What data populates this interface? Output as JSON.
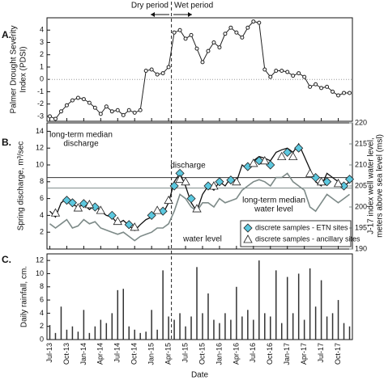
{
  "chart_data": [
    {
      "type": "line",
      "panel_label": "A.",
      "ylabel": [
        "Palmer Drought Severity",
        "Index (PDSI)"
      ],
      "annotations": [
        "Dry period",
        "Wet period"
      ],
      "color": "#222222",
      "reference_line": 0,
      "x": [
        "Jul-13",
        "Aug-13",
        "Sep-13",
        "Oct-13",
        "Nov-13",
        "Dec-13",
        "Jan-14",
        "Feb-14",
        "Mar-14",
        "Apr-14",
        "May-14",
        "Jun-14",
        "Jul-14",
        "Aug-14",
        "Sep-14",
        "Oct-14",
        "Nov-14",
        "Dec-14",
        "Jan-15",
        "Feb-15",
        "Mar-15",
        "Apr-15",
        "May-15",
        "Jun-15",
        "Jul-15",
        "Aug-15",
        "Sep-15",
        "Oct-15",
        "Nov-15",
        "Dec-15",
        "Jan-16",
        "Feb-16",
        "Mar-16",
        "Apr-16",
        "May-16",
        "Jun-16",
        "Jul-16",
        "Aug-16",
        "Sep-16",
        "Oct-16",
        "Nov-16",
        "Dec-16",
        "Jan-17",
        "Feb-17",
        "Mar-17",
        "Apr-17",
        "May-17",
        "Jun-17",
        "Jul-17",
        "Aug-17",
        "Sep-17",
        "Oct-17",
        "Nov-17",
        "Dec-17"
      ],
      "values": [
        -3.0,
        -3.2,
        -2.6,
        -2.1,
        -1.7,
        -1.5,
        -1.6,
        -1.9,
        -2.3,
        -2.8,
        -2.2,
        -2.6,
        -2.5,
        -2.9,
        -2.5,
        -2.7,
        -2.5,
        0.7,
        0.8,
        0.4,
        0.5,
        1.0,
        3.8,
        4.0,
        3.3,
        3.6,
        2.5,
        1.4,
        2.3,
        3.0,
        2.6,
        3.7,
        4.2,
        3.8,
        3.4,
        4.2,
        4.7,
        4.6,
        0.8,
        0.2,
        0.7,
        0.7,
        0.6,
        0.3,
        0.5,
        0.2,
        -0.6,
        -0.4,
        -0.7,
        -0.6,
        -1.0,
        -1.3,
        -1.1,
        -1.1
      ],
      "ylim": [
        -3.4,
        5
      ],
      "yticks": [
        -3,
        -2,
        -1,
        0,
        1,
        2,
        3,
        4
      ]
    },
    {
      "type": "line",
      "panel_label": "B.",
      "ylabel": "Spring discharge, m³/sec",
      "y2label": [
        "J-17 index well water level,",
        "meters above sea level (msl)"
      ],
      "x": [
        "Jul-13",
        "Aug-13",
        "Sep-13",
        "Oct-13",
        "Nov-13",
        "Dec-13",
        "Jan-14",
        "Feb-14",
        "Mar-14",
        "Apr-14",
        "May-14",
        "Jun-14",
        "Jul-14",
        "Aug-14",
        "Sep-14",
        "Oct-14",
        "Nov-14",
        "Dec-14",
        "Jan-15",
        "Feb-15",
        "Mar-15",
        "Apr-15",
        "May-15",
        "Jun-15",
        "Jul-15",
        "Aug-15",
        "Sep-15",
        "Oct-15",
        "Nov-15",
        "Dec-15",
        "Jan-16",
        "Feb-16",
        "Mar-16",
        "Apr-16",
        "May-16",
        "Jun-16",
        "Jul-16",
        "Aug-16",
        "Sep-16",
        "Oct-16",
        "Nov-16",
        "Dec-16",
        "Jan-17",
        "Feb-17",
        "Mar-17",
        "Apr-17",
        "May-17",
        "Jun-17",
        "Jul-17",
        "Aug-17",
        "Sep-17",
        "Oct-17",
        "Nov-17",
        "Dec-17"
      ],
      "series": [
        {
          "name": "discharge",
          "color": "#111111",
          "values": [
            4.5,
            3.8,
            5.5,
            6.0,
            5.3,
            5.0,
            5.3,
            4.7,
            5.2,
            4.5,
            4.0,
            3.8,
            3.0,
            3.4,
            2.8,
            2.2,
            2.9,
            3.5,
            3.8,
            4.5,
            4.2,
            5.5,
            8.0,
            9.0,
            7.5,
            5.5,
            4.5,
            6.5,
            7.5,
            7.0,
            8.0,
            7.5,
            8.5,
            8.0,
            10.0,
            9.5,
            10.5,
            11.0,
            10.8,
            10.5,
            11.5,
            11.8,
            12.0,
            11.5,
            12.5,
            11.0,
            9.5,
            8.0,
            7.5,
            9.0,
            8.5,
            8.0,
            7.5,
            8.0
          ]
        },
        {
          "name": "water level",
          "color": "#7d8a88",
          "axis": "y2",
          "values": [
            196,
            195,
            196,
            197,
            195,
            195.5,
            197,
            196,
            196.5,
            195,
            194.5,
            194,
            193.5,
            194,
            193,
            192,
            193,
            193.5,
            194,
            195,
            195,
            196,
            199,
            203,
            202,
            200,
            199,
            201,
            201,
            200,
            202,
            201,
            201.5,
            202,
            204,
            205,
            206,
            206.5,
            206,
            205,
            207,
            207,
            208,
            206,
            205,
            204,
            200,
            199,
            201,
            203,
            202,
            201,
            202,
            203
          ]
        },
        {
          "name": "discrete samples - ETN sites",
          "type": "scatter",
          "marker": "diamond",
          "color": "#5cc8df",
          "x": [
            "Oct-13",
            "Nov-13",
            "Jan-14",
            "Mar-14",
            "Jun-14",
            "Sep-14",
            "Jan-15",
            "Mar-15",
            "May-15",
            "Jun-15",
            "Aug-15",
            "Nov-15",
            "Jan-16",
            "Mar-16",
            "Jun-16",
            "Aug-16",
            "Oct-16",
            "Jan-17",
            "Mar-17",
            "Jun-17",
            "Aug-17",
            "Nov-17",
            "Dec-17"
          ],
          "values": [
            5.8,
            5.5,
            5.4,
            5.0,
            4.0,
            2.9,
            4.0,
            4.5,
            7.5,
            9.0,
            6.0,
            7.5,
            8.0,
            8.2,
            9.8,
            10.5,
            10.0,
            11.5,
            12.0,
            8.5,
            8.0,
            7.5,
            8.3
          ]
        },
        {
          "name": "discrete samples - ancillary sites",
          "type": "scatter",
          "marker": "triangle",
          "color": "#ffffff",
          "x": [
            "Aug-13",
            "Dec-13",
            "Feb-14",
            "Apr-14",
            "Jul-14",
            "Oct-14",
            "Feb-15",
            "Apr-15",
            "Jun-15",
            "Jul-15",
            "Sep-15",
            "Dec-15",
            "Apr-16",
            "Jul-16",
            "Sep-16",
            "Dec-16",
            "Feb-17",
            "May-17",
            "Jul-17",
            "Oct-17"
          ],
          "values": [
            4.3,
            4.9,
            5.3,
            4.6,
            3.3,
            2.6,
            4.6,
            5.8,
            8.3,
            8.0,
            4.8,
            7.5,
            8.0,
            10.2,
            10.5,
            11.0,
            11.0,
            9.0,
            8.0,
            7.8
          ]
        }
      ],
      "reference_lines": [
        {
          "value": 8.5,
          "label": [
            "long-term median",
            "discharge"
          ],
          "color": "#333333"
        },
        {
          "value": 204.5,
          "axis": "y2",
          "label": [
            "long-term median",
            "water level"
          ],
          "color": "#7d8a88"
        }
      ],
      "ylim": [
        0,
        15
      ],
      "yticks": [
        2,
        4,
        6,
        8,
        10,
        12,
        14
      ],
      "y2lim": [
        190,
        220
      ],
      "y2ticks": [
        190,
        195,
        200,
        205,
        210,
        215,
        220
      ]
    },
    {
      "type": "bar",
      "panel_label": "C.",
      "ylabel": "Daily rainfall, cm.",
      "xlabel": "Date",
      "color": "#333333",
      "x": [
        "Jul-13",
        "Aug-13",
        "Sep-13",
        "Oct-13",
        "Nov-13",
        "Dec-13",
        "Jan-14",
        "Feb-14",
        "Mar-14",
        "Apr-14",
        "May-14",
        "Jun-14",
        "Jul-14",
        "Aug-14",
        "Sep-14",
        "Oct-14",
        "Nov-14",
        "Dec-14",
        "Jan-15",
        "Feb-15",
        "Mar-15",
        "Apr-15",
        "May-15",
        "Jun-15",
        "Jul-15",
        "Aug-15",
        "Sep-15",
        "Oct-15",
        "Nov-15",
        "Dec-15",
        "Jan-16",
        "Feb-16",
        "Mar-16",
        "Apr-16",
        "May-16",
        "Jun-16",
        "Jul-16",
        "Aug-16",
        "Sep-16",
        "Oct-16",
        "Nov-16",
        "Dec-16",
        "Jan-17",
        "Feb-17",
        "Mar-17",
        "Apr-17",
        "May-17",
        "Jun-17",
        "Jul-17",
        "Aug-17",
        "Sep-17",
        "Oct-17",
        "Nov-17",
        "Dec-17"
      ],
      "values": [
        2.2,
        1.0,
        5.0,
        1.5,
        2.0,
        1.2,
        4.5,
        1.0,
        2.0,
        3.0,
        2.5,
        4.0,
        7.5,
        7.7,
        2.0,
        1.5,
        1.0,
        1.2,
        4.5,
        1.5,
        10.5,
        3.5,
        3.0,
        4.0,
        2.0,
        3.5,
        11.0,
        4.0,
        7.0,
        3.0,
        2.5,
        4.0,
        3.0,
        8.0,
        3.5,
        4.5,
        3.0,
        12.0,
        4.0,
        3.5,
        10.5,
        2.5,
        9.5,
        4.0,
        10.0,
        3.0,
        10.8,
        5.0,
        9.0,
        3.5,
        4.0,
        6.0,
        2.5,
        2.0
      ],
      "ylim": [
        0,
        13
      ],
      "yticks": [
        0,
        2,
        4,
        6,
        8,
        10,
        12
      ],
      "xticks": [
        "Jul-13",
        "Oct-13",
        "Jan-14",
        "Apr-14",
        "Jul-14",
        "Oct-14",
        "Jan-15",
        "Apr-15",
        "Jul-15",
        "Oct-15",
        "Jan-16",
        "Apr-16",
        "Jul-16",
        "Oct-16",
        "Jan-17",
        "Apr-17",
        "Jul-17",
        "Oct-17"
      ]
    }
  ]
}
